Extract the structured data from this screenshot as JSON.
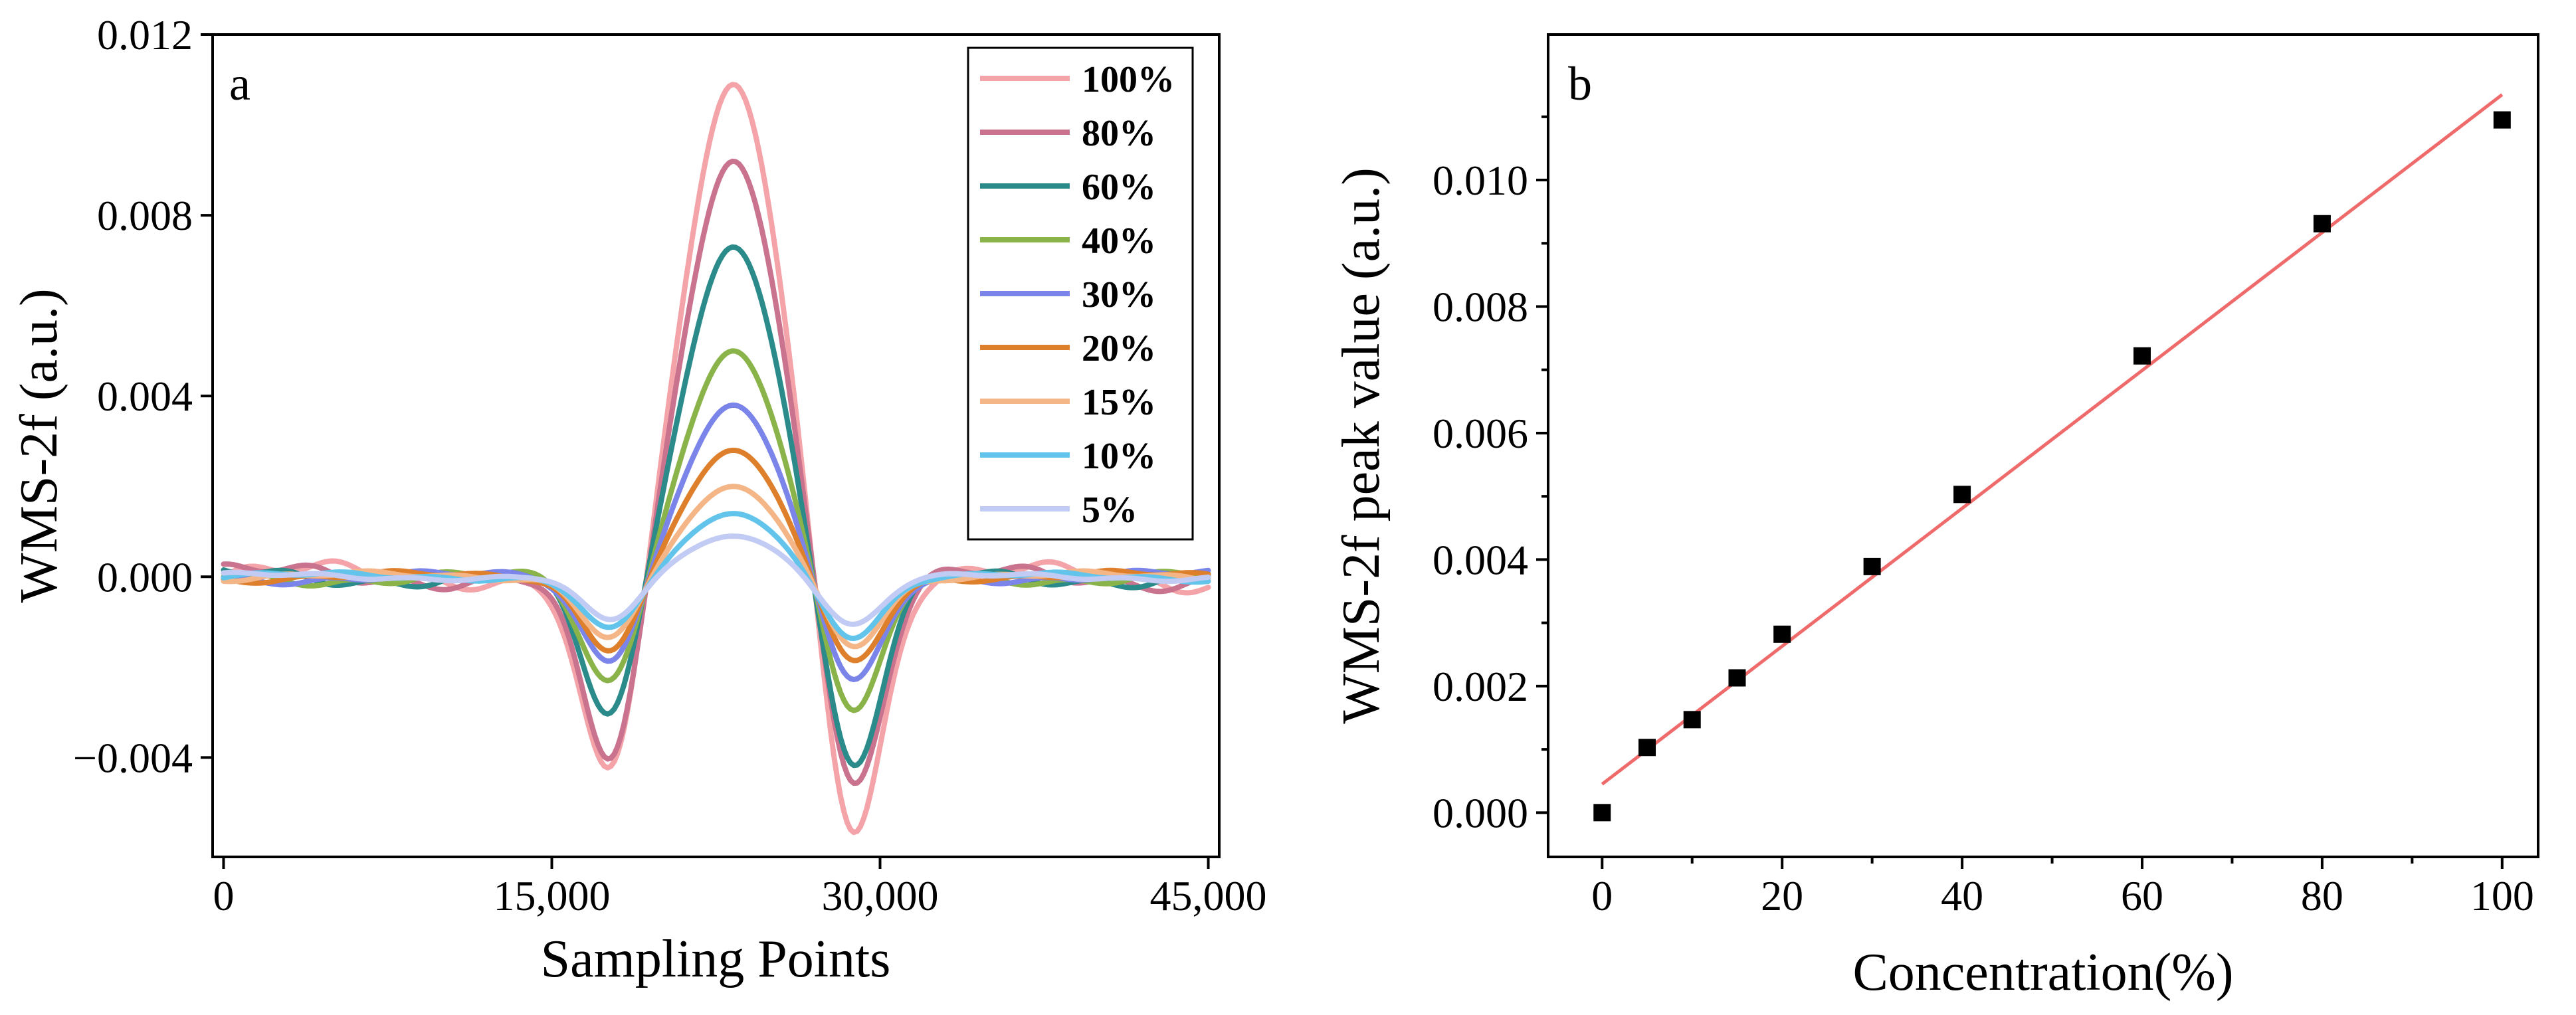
{
  "chart_data": [
    {
      "type": "line",
      "panel_label": "a",
      "xlabel": "Sampling Points",
      "ylabel": "WMS-2f (a.u.)",
      "xlim": [
        -500,
        45500
      ],
      "ylim": [
        -0.0062,
        0.012
      ],
      "x_ticks": [
        0,
        15000,
        30000,
        45000
      ],
      "x_tick_labels": [
        "0",
        "15,000",
        "30,000",
        "45,000"
      ],
      "y_ticks": [
        -0.004,
        0.0,
        0.004,
        0.008,
        0.012
      ],
      "y_tick_labels": [
        "−0.004",
        "0.000",
        "0.004",
        "0.008",
        "0.012"
      ],
      "legend_position": "top-right",
      "series": [
        {
          "name": "100%",
          "color": "#f4a3a8",
          "peak": 0.0109,
          "min_left": -0.0047,
          "min_right": -0.0061,
          "noise": 0.00025
        },
        {
          "name": "80%",
          "color": "#c9738f",
          "peak": 0.0092,
          "min_left": -0.0044,
          "min_right": -0.005,
          "noise": 0.00022
        },
        {
          "name": "60%",
          "color": "#2b8a8a",
          "peak": 0.0073,
          "min_left": -0.0033,
          "min_right": -0.0045,
          "noise": 0.00018
        },
        {
          "name": "40%",
          "color": "#8ab34a",
          "peak": 0.005,
          "min_left": -0.0025,
          "min_right": -0.0032,
          "noise": 0.00015
        },
        {
          "name": "30%",
          "color": "#7b84e8",
          "peak": 0.0038,
          "min_left": -0.002,
          "min_right": -0.0025,
          "noise": 0.00012
        },
        {
          "name": "20%",
          "color": "#de7f2c",
          "peak": 0.0028,
          "min_left": -0.0017,
          "min_right": -0.002,
          "noise": 0.0001
        },
        {
          "name": "15%",
          "color": "#f4b687",
          "peak": 0.002,
          "min_left": -0.0014,
          "min_right": -0.0016,
          "noise": 9e-05
        },
        {
          "name": "10%",
          "color": "#62c4ea",
          "peak": 0.0014,
          "min_left": -0.0012,
          "min_right": -0.0014,
          "noise": 8e-05
        },
        {
          "name": "5%",
          "color": "#c2cbf3",
          "peak": 0.0009,
          "min_left": -0.001,
          "min_right": -0.0011,
          "noise": 7e-05
        }
      ]
    },
    {
      "type": "scatter",
      "panel_label": "b",
      "xlabel": "Concentration(%)",
      "ylabel": "WMS-2f peak value (a.u.)",
      "xlim": [
        -6,
        104
      ],
      "ylim": [
        -0.0007,
        0.0123
      ],
      "x_ticks": [
        0,
        20,
        40,
        60,
        80,
        100
      ],
      "x_tick_labels": [
        "0",
        "20",
        "40",
        "60",
        "80",
        "100"
      ],
      "y_ticks": [
        0.0,
        0.002,
        0.004,
        0.006,
        0.008,
        0.01
      ],
      "y_tick_labels": [
        "0.000",
        "0.002",
        "0.004",
        "0.006",
        "0.008",
        "0.010"
      ],
      "points": {
        "x": [
          0,
          5,
          10,
          15,
          20,
          30,
          40,
          60,
          80,
          100
        ],
        "y": [
          0.0,
          0.00103,
          0.00147,
          0.00213,
          0.00282,
          0.00389,
          0.00503,
          0.00722,
          0.00931,
          0.01095
        ]
      },
      "marker_color": "#000000",
      "fit_line": {
        "x": [
          0,
          100
        ],
        "y": [
          0.00045,
          0.01135
        ],
        "color": "#ef6b6b"
      }
    }
  ]
}
